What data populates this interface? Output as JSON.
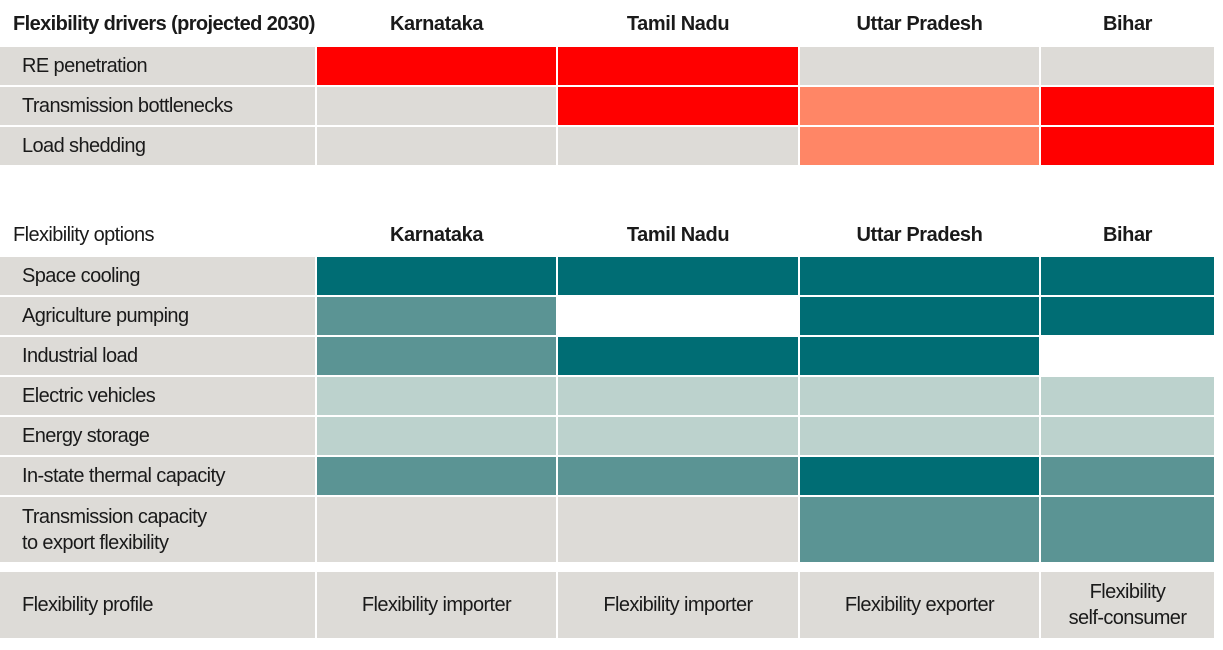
{
  "colors": {
    "gray": "#dddbd7",
    "red": "#ff0000",
    "salmon": "#ff8666",
    "dark_teal": "#006d74",
    "medium_teal": "#5b9494",
    "light_teal": "#bcd2cd",
    "white": "#ffffff"
  },
  "legend_level_colors": {
    "none": "#dddbd7",
    "high": "#ff0000",
    "medium": "#ff8666",
    "dark": "#006d74",
    "medium_teal": "#5b9494",
    "light": "#bcd2cd",
    "blank": "#ffffff"
  },
  "chart_data": {
    "type": "heatmap",
    "states": [
      "Karnataka",
      "Tamil Nadu",
      "Uttar Pradesh",
      "Bihar"
    ],
    "drivers": {
      "title": "Flexibility drivers (projected 2030)",
      "rows": [
        {
          "label": "RE penetration",
          "levels": [
            "high",
            "high",
            "none",
            "none"
          ]
        },
        {
          "label": "Transmission bottlenecks",
          "levels": [
            "none",
            "high",
            "medium",
            "high"
          ]
        },
        {
          "label": "Load shedding",
          "levels": [
            "none",
            "none",
            "medium",
            "high"
          ]
        }
      ]
    },
    "options": {
      "title": "Flexibility options",
      "rows": [
        {
          "label": "Space cooling",
          "levels": [
            "dark",
            "dark",
            "dark",
            "dark"
          ]
        },
        {
          "label": "Agriculture pumping",
          "levels": [
            "medium_teal",
            "blank",
            "dark",
            "dark"
          ]
        },
        {
          "label": "Industrial load",
          "levels": [
            "medium_teal",
            "dark",
            "dark",
            "blank"
          ]
        },
        {
          "label": "Electric vehicles",
          "levels": [
            "light",
            "light",
            "light",
            "light"
          ]
        },
        {
          "label": "Energy storage",
          "levels": [
            "light",
            "light",
            "light",
            "light"
          ]
        },
        {
          "label": "In-state thermal capacity",
          "levels": [
            "medium_teal",
            "medium_teal",
            "dark",
            "medium_teal"
          ]
        },
        {
          "label": "Transmission capacity\nto export flexibility",
          "levels": [
            "none",
            "none",
            "medium_teal",
            "medium_teal"
          ]
        }
      ]
    },
    "profile": {
      "label": "Flexibility profile",
      "values": [
        "Flexibility importer",
        "Flexibility importer",
        "Flexibility exporter",
        "Flexibility\nself-consumer"
      ]
    }
  }
}
